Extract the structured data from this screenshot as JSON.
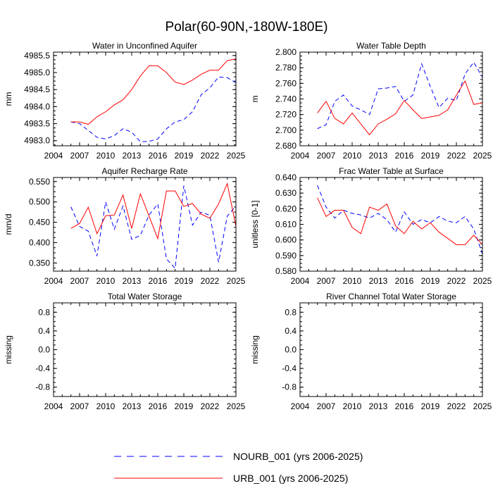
{
  "title": "Polar(60-90N,-180W-180E)",
  "colors": {
    "nourb": "#0000ff",
    "urb": "#ff0000"
  },
  "chart_data": [
    {
      "type": "line",
      "title": "Water in Unconfined Aquifer",
      "ylabel": "mm",
      "xlim": [
        2004,
        2025
      ],
      "ylim": [
        4982.85,
        4985.6
      ],
      "xticks": [
        2004,
        2007,
        2010,
        2013,
        2016,
        2019,
        2022,
        2025
      ],
      "xtick_labels": [
        "2004",
        "2007",
        "2010",
        "2013",
        "2016",
        "2019",
        "2022",
        "2025"
      ],
      "yticks": [
        4983.0,
        4983.5,
        4984.0,
        4984.5,
        4985.0,
        4985.5
      ],
      "ytick_labels": [
        "4983.0",
        "4983.5",
        "4984.0",
        "4984.5",
        "4985.0",
        "4985.5"
      ],
      "x": [
        2006,
        2007,
        2008,
        2009,
        2010,
        2011,
        2012,
        2013,
        2014,
        2015,
        2016,
        2017,
        2018,
        2019,
        2020,
        2021,
        2022,
        2023,
        2024,
        2025
      ],
      "series": [
        {
          "name": "NOURB_001",
          "style": "dashed",
          "values": [
            4983.55,
            4983.5,
            4983.3,
            4983.1,
            4983.05,
            4983.15,
            4983.35,
            4983.25,
            4982.97,
            4982.98,
            4983.05,
            4983.35,
            4983.55,
            4983.62,
            4983.85,
            4984.35,
            4984.55,
            4984.87,
            4984.85,
            4984.7
          ]
        },
        {
          "name": "URB_001",
          "style": "solid",
          "values": [
            4983.55,
            4983.55,
            4983.48,
            4983.7,
            4983.85,
            4984.05,
            4984.2,
            4984.5,
            4984.9,
            4985.2,
            4985.2,
            4985.0,
            4984.72,
            4984.65,
            4984.78,
            4984.95,
            4985.07,
            4985.07,
            4985.35,
            4985.4
          ]
        }
      ]
    },
    {
      "type": "line",
      "title": "Water Table Depth",
      "ylabel": "m",
      "xlim": [
        2004,
        2025
      ],
      "ylim": [
        2.68,
        2.8
      ],
      "xticks": [
        2004,
        2007,
        2010,
        2013,
        2016,
        2019,
        2022,
        2025
      ],
      "xtick_labels": [
        "2004",
        "2007",
        "2010",
        "2013",
        "2016",
        "2019",
        "2022",
        "2025"
      ],
      "yticks": [
        2.68,
        2.7,
        2.72,
        2.74,
        2.76,
        2.78,
        2.8
      ],
      "ytick_labels": [
        "2.680",
        "2.700",
        "2.720",
        "2.740",
        "2.760",
        "2.780",
        "2.800"
      ],
      "x": [
        2006,
        2007,
        2008,
        2009,
        2010,
        2011,
        2012,
        2013,
        2014,
        2015,
        2016,
        2017,
        2018,
        2019,
        2020,
        2021,
        2022,
        2023,
        2024,
        2025
      ],
      "series": [
        {
          "name": "NOURB_001",
          "style": "dashed",
          "values": [
            2.702,
            2.707,
            2.737,
            2.745,
            2.731,
            2.726,
            2.72,
            2.753,
            2.754,
            2.756,
            2.737,
            2.745,
            2.785,
            2.756,
            2.729,
            2.741,
            2.738,
            2.772,
            2.787,
            2.768
          ]
        },
        {
          "name": "URB_001",
          "style": "solid",
          "values": [
            2.722,
            2.737,
            2.715,
            2.708,
            2.722,
            2.708,
            2.694,
            2.708,
            2.714,
            2.721,
            2.738,
            2.726,
            2.715,
            2.717,
            2.719,
            2.726,
            2.745,
            2.763,
            2.733,
            2.735
          ]
        }
      ]
    },
    {
      "type": "line",
      "title": "Aquifer Recharge Rate",
      "ylabel": "mm/d",
      "xlim": [
        2004,
        2025
      ],
      "ylim": [
        0.33,
        0.56
      ],
      "xticks": [
        2004,
        2007,
        2010,
        2013,
        2016,
        2019,
        2022,
        2025
      ],
      "xtick_labels": [
        "2004",
        "2007",
        "2010",
        "2013",
        "2016",
        "2019",
        "2022",
        "2025"
      ],
      "yticks": [
        0.35,
        0.4,
        0.45,
        0.5,
        0.55
      ],
      "ytick_labels": [
        "0.350",
        "0.400",
        "0.450",
        "0.500",
        "0.550"
      ],
      "x": [
        2006,
        2007,
        2008,
        2009,
        2010,
        2011,
        2012,
        2013,
        2014,
        2015,
        2016,
        2017,
        2018,
        2019,
        2020,
        2021,
        2022,
        2023,
        2024,
        2025
      ],
      "series": [
        {
          "name": "NOURB_001",
          "style": "dashed",
          "values": [
            0.488,
            0.44,
            0.428,
            0.367,
            0.5,
            0.433,
            0.49,
            0.408,
            0.418,
            0.468,
            0.495,
            0.36,
            0.337,
            0.54,
            0.443,
            0.475,
            0.467,
            0.352,
            0.465,
            0.49
          ]
        },
        {
          "name": "URB_001",
          "style": "solid",
          "values": [
            0.435,
            0.447,
            0.487,
            0.422,
            0.466,
            0.468,
            0.517,
            0.435,
            0.52,
            0.465,
            0.41,
            0.527,
            0.527,
            0.489,
            0.496,
            0.47,
            0.46,
            0.495,
            0.545,
            0.44
          ]
        }
      ]
    },
    {
      "type": "line",
      "title": "Frac Water Table at Surface",
      "ylabel": "unitless [0-1]",
      "xlim": [
        2004,
        2025
      ],
      "ylim": [
        0.58,
        0.64
      ],
      "xticks": [
        2004,
        2007,
        2010,
        2013,
        2016,
        2019,
        2022,
        2025
      ],
      "xtick_labels": [
        "2004",
        "2007",
        "2010",
        "2013",
        "2016",
        "2019",
        "2022",
        "2025"
      ],
      "yticks": [
        0.58,
        0.59,
        0.6,
        0.61,
        0.62,
        0.63,
        0.64
      ],
      "ytick_labels": [
        "0.580",
        "0.590",
        "0.600",
        "0.610",
        "0.620",
        "0.630",
        "0.640"
      ],
      "x": [
        2006,
        2007,
        2008,
        2009,
        2010,
        2011,
        2012,
        2013,
        2014,
        2015,
        2016,
        2017,
        2018,
        2019,
        2020,
        2021,
        2022,
        2023,
        2024,
        2025
      ],
      "series": [
        {
          "name": "NOURB_001",
          "style": "dashed",
          "values": [
            0.635,
            0.621,
            0.614,
            0.619,
            0.617,
            0.616,
            0.614,
            0.617,
            0.613,
            0.605,
            0.618,
            0.61,
            0.613,
            0.611,
            0.615,
            0.612,
            0.611,
            0.615,
            0.607,
            0.591
          ]
        },
        {
          "name": "URB_001",
          "style": "solid",
          "values": [
            0.627,
            0.615,
            0.619,
            0.619,
            0.608,
            0.604,
            0.621,
            0.619,
            0.623,
            0.609,
            0.604,
            0.612,
            0.607,
            0.611,
            0.605,
            0.601,
            0.597,
            0.597,
            0.603,
            0.597
          ]
        }
      ]
    },
    {
      "type": "line",
      "title": "Total Water Storage",
      "ylabel": "missing",
      "xlim": [
        2004,
        2025
      ],
      "ylim": [
        -1,
        1
      ],
      "xticks": [
        2004,
        2007,
        2010,
        2013,
        2016,
        2019,
        2022,
        2025
      ],
      "xtick_labels": [
        "2004",
        "2007",
        "2010",
        "2013",
        "2016",
        "2019",
        "2022",
        "2025"
      ],
      "yticks": [
        -0.8,
        -0.4,
        0.0,
        0.4,
        0.8
      ],
      "ytick_labels": [
        "-0.8",
        "-0.4",
        "0.0",
        "0.4",
        "0.8"
      ],
      "x": [],
      "series": []
    },
    {
      "type": "line",
      "title": "River Channel Total Water Storage",
      "ylabel": "missing",
      "xlim": [
        2004,
        2025
      ],
      "ylim": [
        -1,
        1
      ],
      "xticks": [
        2004,
        2007,
        2010,
        2013,
        2016,
        2019,
        2022,
        2025
      ],
      "xtick_labels": [
        "2004",
        "2007",
        "2010",
        "2013",
        "2016",
        "2019",
        "2022",
        "2025"
      ],
      "yticks": [
        -0.8,
        -0.4,
        0.0,
        0.4,
        0.8
      ],
      "ytick_labels": [
        "-0.8",
        "-0.4",
        "0.0",
        "0.4",
        "0.8"
      ],
      "x": [],
      "series": []
    }
  ],
  "legend": [
    {
      "label": "NOURB_001 (yrs 2006-2025)",
      "style": "dashed",
      "color": "#0000ff"
    },
    {
      "label": "URB_001 (yrs 2006-2025)",
      "style": "solid",
      "color": "#ff0000"
    }
  ]
}
